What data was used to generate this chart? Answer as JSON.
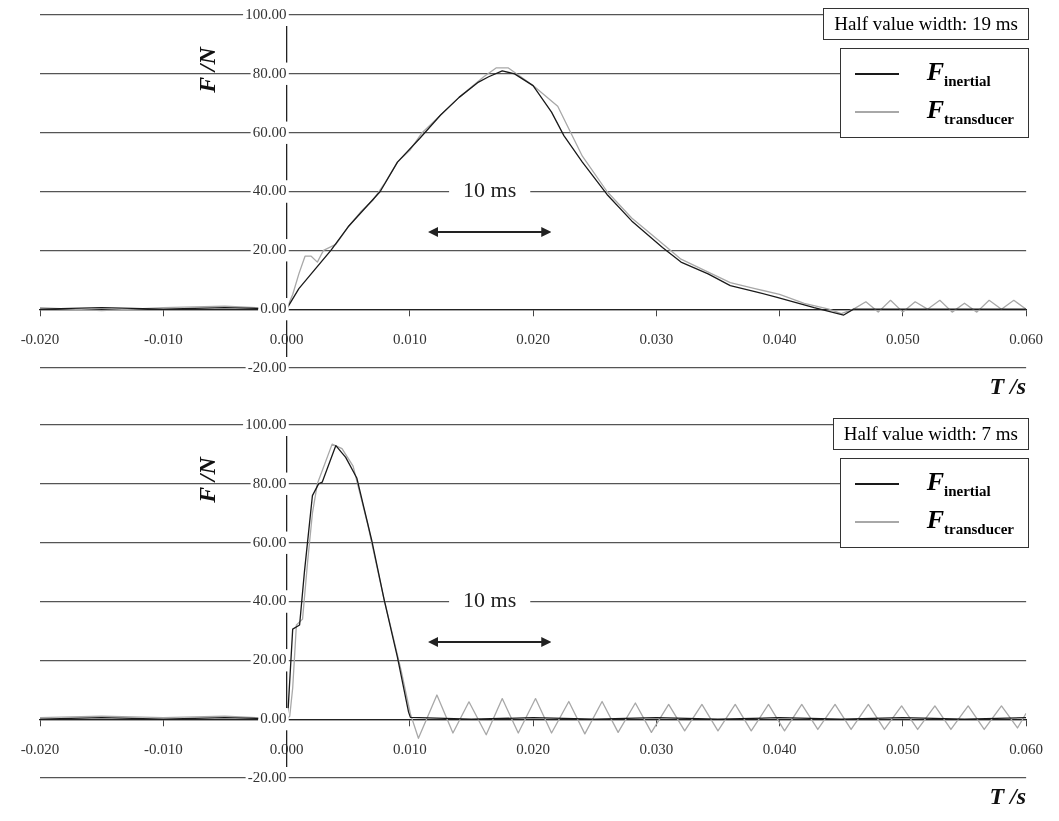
{
  "chart_data": [
    {
      "type": "line",
      "xlabel": "T /s",
      "ylabel": "F /N",
      "annotations": [
        "Half value width: 19 ms",
        "10 ms"
      ],
      "grid": "y",
      "legend": "top right",
      "xlim": [
        -0.02,
        0.06
      ],
      "xticks": [
        {
          "value": -0.02,
          "label": "-0.020"
        },
        {
          "value": -0.01,
          "label": "-0.010"
        },
        {
          "value": 0,
          "label": "0.000"
        },
        {
          "value": 0.01,
          "label": "0.010"
        },
        {
          "value": 0.02,
          "label": "0.020"
        },
        {
          "value": 0.03,
          "label": "0.030"
        },
        {
          "value": 0.04,
          "label": "0.040"
        },
        {
          "value": 0.05,
          "label": "0.050"
        },
        {
          "value": 0.06,
          "label": "0.060"
        }
      ],
      "ylim": [
        -20,
        100
      ],
      "yticks": [
        {
          "value": -20,
          "label": "-20.00"
        },
        {
          "value": 0,
          "label": "0.00"
        },
        {
          "value": 20,
          "label": "20.00"
        },
        {
          "value": 40,
          "label": "40.00"
        },
        {
          "value": 60,
          "label": "60.00"
        },
        {
          "value": 80,
          "label": "80.00"
        },
        {
          "value": 100,
          "label": "100.00"
        }
      ],
      "series": [
        {
          "name": "F$_{inertial}$",
          "color": "#1a1a1a",
          "x": [
            -0.02,
            -0.015,
            -0.01,
            -0.005,
            0,
            0.001,
            0.002,
            0.0036,
            0.005,
            0.0076,
            0.009,
            0.0108,
            0.0125,
            0.014,
            0.0155,
            0.0164,
            0.0175,
            0.0185,
            0.02,
            0.0215,
            0.0225,
            0.024,
            0.026,
            0.028,
            0.0305,
            0.032,
            0.0342,
            0.036,
            0.038,
            0.0398,
            0.0428,
            0.0452,
            0.046,
            0.05,
            0.055,
            0.06
          ],
          "values": [
            0,
            0.5,
            0,
            0.5,
            0,
            7,
            12,
            20,
            28,
            40,
            50,
            58,
            66,
            72,
            77,
            79,
            81,
            80,
            76,
            67,
            59,
            50,
            39,
            30,
            21,
            16,
            12,
            8,
            6,
            4,
            0.5,
            -2,
            0,
            0,
            0,
            0
          ]
        },
        {
          "name": "F$_{transducer}$",
          "color": "#a8a8a8",
          "x": [
            -0.02,
            -0.015,
            -0.01,
            -0.005,
            0,
            0.0005,
            0.001,
            0.0015,
            0.002,
            0.0025,
            0.003,
            0.004,
            0.005,
            0.006,
            0.007,
            0.008,
            0.009,
            0.01,
            0.011,
            0.012,
            0.014,
            0.016,
            0.017,
            0.018,
            0.019,
            0.02,
            0.022,
            0.024,
            0.026,
            0.028,
            0.03,
            0.032,
            0.034,
            0.036,
            0.038,
            0.04,
            0.042,
            0.044,
            0.045,
            0.046,
            0.047,
            0.048,
            0.049,
            0.05,
            0.051,
            0.052,
            0.053,
            0.054,
            0.055,
            0.056,
            0.057,
            0.058,
            0.059,
            0.06
          ],
          "values": [
            0.5,
            -0.5,
            0.5,
            1,
            0,
            5,
            12,
            18,
            18,
            16,
            20,
            22,
            28,
            33,
            37,
            43,
            50,
            54,
            60,
            64,
            72,
            79,
            82,
            82,
            79,
            76,
            69,
            52,
            40,
            31,
            24,
            17,
            13,
            9,
            7,
            5,
            2,
            0,
            -1.5,
            0,
            2.5,
            -1,
            3,
            -1,
            2.5,
            0,
            3,
            -1,
            2,
            -1,
            3,
            0,
            3,
            0
          ]
        }
      ]
    },
    {
      "type": "line",
      "xlabel": "T /s",
      "ylabel": "F /N",
      "annotations": [
        "Half value width: 7 ms",
        "10 ms"
      ],
      "grid": "y",
      "legend": "top right",
      "xlim": [
        -0.02,
        0.06
      ],
      "xticks": [
        {
          "value": -0.02,
          "label": "-0.020"
        },
        {
          "value": -0.01,
          "label": "-0.010"
        },
        {
          "value": 0,
          "label": "0.000"
        },
        {
          "value": 0.01,
          "label": "0.010"
        },
        {
          "value": 0.02,
          "label": "0.020"
        },
        {
          "value": 0.03,
          "label": "0.030"
        },
        {
          "value": 0.04,
          "label": "0.040"
        },
        {
          "value": 0.05,
          "label": "0.050"
        },
        {
          "value": 0.06,
          "label": "0.060"
        }
      ],
      "ylim": [
        -20,
        100
      ],
      "yticks": [
        {
          "value": -20,
          "label": "-20.00"
        },
        {
          "value": 0,
          "label": "0.00"
        },
        {
          "value": 20,
          "label": "20.00"
        },
        {
          "value": 40,
          "label": "40.00"
        },
        {
          "value": 60,
          "label": "60.00"
        },
        {
          "value": 80,
          "label": "80.00"
        },
        {
          "value": 100,
          "label": "100.00"
        }
      ],
      "series": [
        {
          "name": "F$_{inertial}$",
          "color": "#1a1a1a",
          "x": [
            -0.02,
            -0.015,
            -0.01,
            -0.005,
            0,
            0.00013,
            0.0005,
            0.00106,
            0.00145,
            0.0021,
            0.0026,
            0.0029,
            0.004,
            0.0048,
            0.0057,
            0.0069,
            0.0079,
            0.009,
            0.0099,
            0.01005,
            0.015,
            0.02,
            0.025,
            0.03,
            0.035,
            0.04,
            0.045,
            0.05,
            0.055,
            0.06
          ],
          "values": [
            0,
            0.5,
            0,
            0.5,
            0,
            3.5,
            30.6,
            32,
            50,
            76,
            80,
            80.6,
            93,
            89,
            82,
            61,
            41,
            21,
            2.4,
            0.6,
            0,
            0.5,
            0,
            0.5,
            0,
            0.5,
            0,
            0.5,
            0,
            0.5
          ]
        },
        {
          "name": "F$_{transducer}$",
          "color": "#a8a8a8",
          "x": [
            -0.02,
            -0.015,
            -0.01,
            -0.005,
            0,
            0.00026,
            0.0005,
            0.0008,
            0.0013,
            0.0017,
            0.0021,
            0.0025,
            0.0037,
            0.0045,
            0.0054,
            0.0066,
            0.0079,
            0.0093,
            0.01005,
            0.0107,
            0.0122,
            0.0135,
            0.0148,
            0.0162,
            0.0175,
            0.0188,
            0.0202,
            0.0215,
            0.0229,
            0.0242,
            0.0256,
            0.0269,
            0.0283,
            0.0296,
            0.031,
            0.0323,
            0.0337,
            0.035,
            0.0364,
            0.0377,
            0.0391,
            0.0404,
            0.0418,
            0.0431,
            0.0445,
            0.0458,
            0.0472,
            0.0485,
            0.0499,
            0.0512,
            0.0526,
            0.0539,
            0.0553,
            0.0566,
            0.058,
            0.0593,
            0.06
          ],
          "values": [
            0.5,
            1,
            0.5,
            1,
            0,
            1,
            10.6,
            32,
            34,
            53,
            70,
            80,
            93.5,
            92,
            86,
            66,
            41,
            16.5,
            1.8,
            -6.5,
            8.2,
            -4.7,
            5.9,
            -5.3,
            7,
            -4.7,
            7,
            -4.7,
            6,
            -5,
            6,
            -4.5,
            5.5,
            -4.5,
            5,
            -4,
            5,
            -4,
            5,
            -4,
            5,
            -4,
            5,
            -3.5,
            5,
            -3.5,
            5,
            -3.5,
            4.5,
            -3.5,
            4.5,
            -3.5,
            4.5,
            -3.5,
            4.5,
            -3,
            2
          ]
        }
      ]
    }
  ]
}
